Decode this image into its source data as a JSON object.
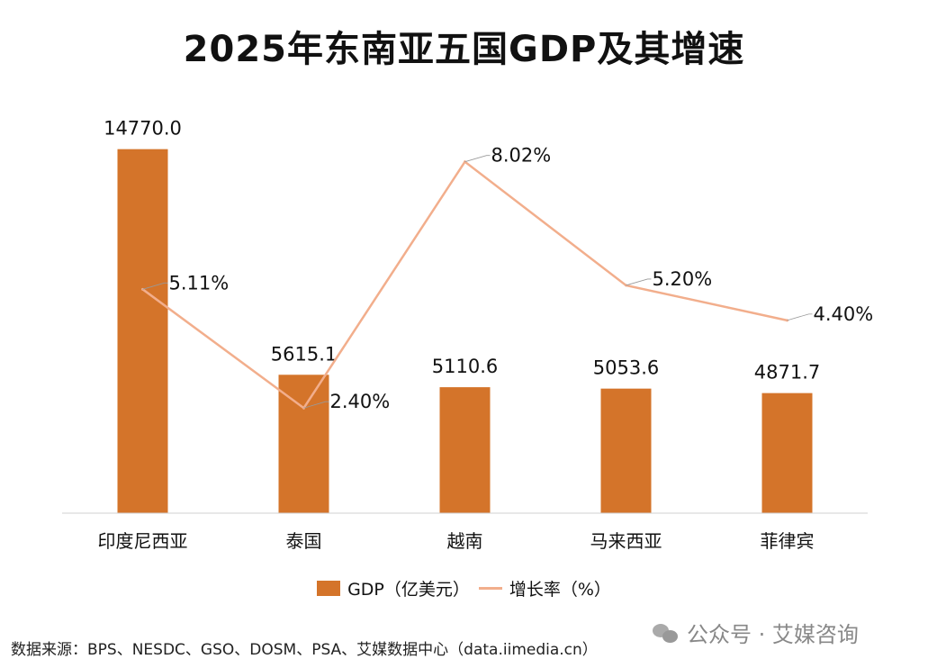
{
  "title": "2025年东南亚五国GDP及其增速",
  "colors": {
    "bar": "#D4742A",
    "line": "#F2AE8C",
    "leader": "#999999"
  },
  "chart_data": {
    "type": "bar+line",
    "title": "2025年东南亚五国GDP及其增速",
    "categories": [
      "印度尼西亚",
      "泰国",
      "越南",
      "马来西亚",
      "菲律宾"
    ],
    "series": [
      {
        "name": "GDP（亿美元）",
        "type": "bar",
        "axis": "left",
        "values": [
          14770.0,
          5615.1,
          5110.6,
          5053.6,
          4871.7
        ],
        "labels": [
          "14770.0",
          "5615.1",
          "5110.6",
          "5053.6",
          "4871.7"
        ]
      },
      {
        "name": "增长率（%）",
        "type": "line",
        "axis": "right",
        "values": [
          5.11,
          2.4,
          8.02,
          5.2,
          4.4
        ],
        "labels": [
          "5.11%",
          "2.40%",
          "8.02%",
          "5.20%",
          "4.40%"
        ]
      }
    ],
    "ylim_left": [
      0,
      16000
    ],
    "ylim_right": [
      0,
      9
    ],
    "grid": false,
    "legend": "bottom"
  },
  "legend": {
    "bar_label": "GDP（亿美元）",
    "line_label": "增长率（%）"
  },
  "source": "数据来源：BPS、NESDC、GSO、DOSM、PSA、艾媒数据中心（data.iimedia.cn）",
  "watermark": "公众号 · 艾媒咨询"
}
